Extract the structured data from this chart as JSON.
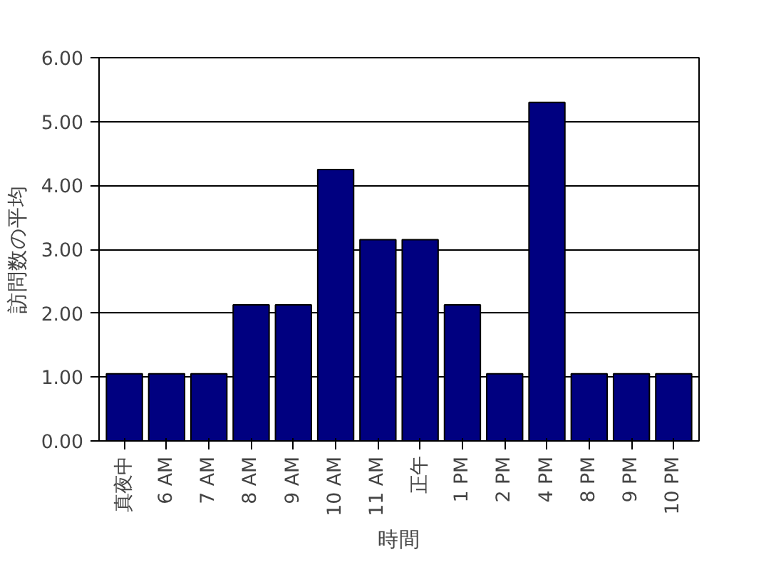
{
  "chart_data": {
    "type": "bar",
    "xlabel": "時間",
    "ylabel": "訪問数の平均",
    "categories": [
      "真夜中",
      "6 AM",
      "7 AM",
      "8 AM",
      "9 AM",
      "10 AM",
      "11 AM",
      "正午",
      "1 PM",
      "2 PM",
      "4 PM",
      "8 PM",
      "9 PM",
      "10 PM"
    ],
    "values": [
      1.05,
      1.05,
      1.05,
      2.13,
      2.13,
      4.25,
      3.15,
      3.15,
      2.13,
      1.05,
      5.3,
      1.05,
      1.05,
      1.05
    ],
    "color": "#000080",
    "ylim": [
      0,
      6
    ],
    "yticks": [
      {
        "value": 0,
        "label": "0.00"
      },
      {
        "value": 1,
        "label": "1.00"
      },
      {
        "value": 2,
        "label": "2.00"
      },
      {
        "value": 3,
        "label": "3.00"
      },
      {
        "value": 4,
        "label": "4.00"
      },
      {
        "value": 5,
        "label": "5.00"
      },
      {
        "value": 6,
        "label": "6.00"
      }
    ],
    "grid": "y"
  }
}
